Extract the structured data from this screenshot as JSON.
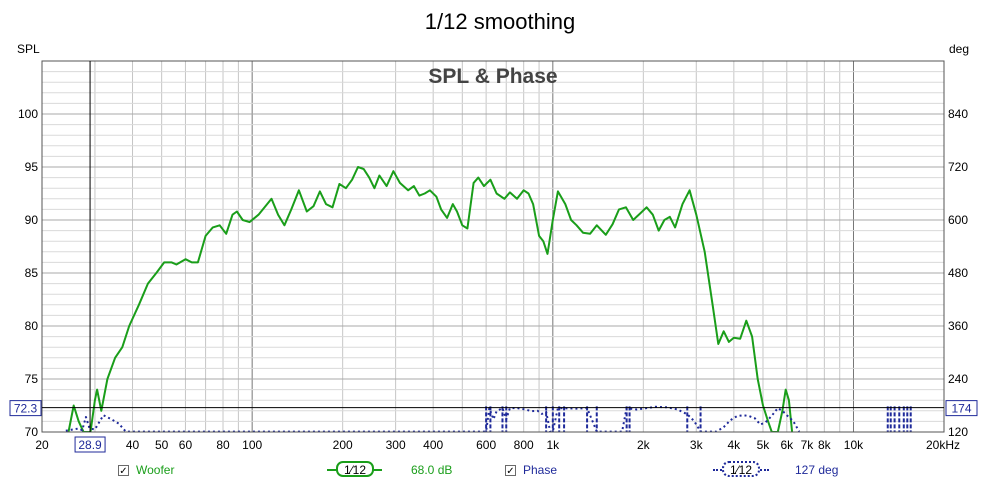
{
  "chart_data": {
    "type": "line",
    "title": "1/12 smoothing",
    "subtitle": "SPL & Phase",
    "left_axis": {
      "label": "SPL",
      "range": [
        70,
        105
      ],
      "ticks": [
        70,
        75,
        80,
        85,
        90,
        95,
        100
      ]
    },
    "right_axis": {
      "label": "deg",
      "range": [
        120,
        960
      ],
      "ticks": [
        120,
        240,
        360,
        480,
        600,
        720,
        840
      ]
    },
    "x_axis": {
      "scale": "log",
      "range": [
        20,
        20000
      ],
      "unit_label": "20kHz",
      "tick_labels": [
        {
          "v": 20,
          "t": "20"
        },
        {
          "v": 40,
          "t": "40"
        },
        {
          "v": 50,
          "t": "50"
        },
        {
          "v": 60,
          "t": "60"
        },
        {
          "v": 80,
          "t": "80"
        },
        {
          "v": 100,
          "t": "100"
        },
        {
          "v": 200,
          "t": "200"
        },
        {
          "v": 300,
          "t": "300"
        },
        {
          "v": 400,
          "t": "400"
        },
        {
          "v": 600,
          "t": "600"
        },
        {
          "v": 800,
          "t": "800"
        },
        {
          "v": 1000,
          "t": "1k"
        },
        {
          "v": 2000,
          "t": "2k"
        },
        {
          "v": 3000,
          "t": "3k"
        },
        {
          "v": 4000,
          "t": "4k"
        },
        {
          "v": 5000,
          "t": "5k"
        },
        {
          "v": 6000,
          "t": "6k"
        },
        {
          "v": 7000,
          "t": "7k"
        },
        {
          "v": 8000,
          "t": "8k"
        },
        {
          "v": 10000,
          "t": "10k"
        }
      ]
    },
    "cursor": {
      "x": 28.9,
      "x_label": "28.9",
      "y_left": 72.3,
      "y_left_label": "72.3",
      "y_right_label": "174"
    },
    "grid": true,
    "colors": {
      "spl": "#1a9e1a",
      "phase": "#1f2a9a"
    },
    "series": [
      {
        "name": "Woofer",
        "axis": "left",
        "style": "solid",
        "points": [
          [
            24.5,
            70
          ],
          [
            25.5,
            72.5
          ],
          [
            26.5,
            71
          ],
          [
            27.5,
            70
          ],
          [
            29,
            70
          ],
          [
            30,
            73
          ],
          [
            30.5,
            74
          ],
          [
            31.5,
            72
          ],
          [
            33,
            75
          ],
          [
            35,
            77
          ],
          [
            37,
            78
          ],
          [
            39,
            80
          ],
          [
            42,
            82
          ],
          [
            45,
            84
          ],
          [
            48,
            85
          ],
          [
            51,
            86
          ],
          [
            54,
            86
          ],
          [
            56,
            85.8
          ],
          [
            60,
            86.3
          ],
          [
            63,
            86
          ],
          [
            66,
            86
          ],
          [
            70,
            88.5
          ],
          [
            74,
            89.3
          ],
          [
            78,
            89.5
          ],
          [
            82,
            88.7
          ],
          [
            86,
            90.5
          ],
          [
            89,
            90.8
          ],
          [
            93,
            90
          ],
          [
            98,
            89.8
          ],
          [
            105,
            90.5
          ],
          [
            110,
            91.2
          ],
          [
            116,
            92
          ],
          [
            122,
            90.5
          ],
          [
            128,
            89.5
          ],
          [
            135,
            91
          ],
          [
            143,
            92.8
          ],
          [
            152,
            90.8
          ],
          [
            160,
            91.3
          ],
          [
            168,
            92.7
          ],
          [
            176,
            91.5
          ],
          [
            185,
            91.2
          ],
          [
            195,
            93.4
          ],
          [
            205,
            93
          ],
          [
            215,
            93.8
          ],
          [
            225,
            95
          ],
          [
            235,
            94.8
          ],
          [
            245,
            94
          ],
          [
            255,
            93
          ],
          [
            265,
            94.2
          ],
          [
            280,
            93.2
          ],
          [
            295,
            94.6
          ],
          [
            310,
            93.5
          ],
          [
            330,
            92.8
          ],
          [
            345,
            93.2
          ],
          [
            360,
            92.3
          ],
          [
            375,
            92.5
          ],
          [
            390,
            92.8
          ],
          [
            410,
            92.2
          ],
          [
            425,
            91
          ],
          [
            445,
            90.2
          ],
          [
            465,
            91.5
          ],
          [
            480,
            90.8
          ],
          [
            500,
            89.5
          ],
          [
            520,
            89.2
          ],
          [
            545,
            93.5
          ],
          [
            565,
            94
          ],
          [
            590,
            93.2
          ],
          [
            620,
            93.8
          ],
          [
            650,
            92.5
          ],
          [
            690,
            92
          ],
          [
            720,
            92.6
          ],
          [
            760,
            92
          ],
          [
            800,
            92.8
          ],
          [
            830,
            92.5
          ],
          [
            860,
            91.5
          ],
          [
            900,
            88.5
          ],
          [
            930,
            88
          ],
          [
            960,
            86.8
          ],
          [
            1000,
            90
          ],
          [
            1040,
            92.7
          ],
          [
            1100,
            91.5
          ],
          [
            1150,
            90
          ],
          [
            1200,
            89.5
          ],
          [
            1260,
            88.8
          ],
          [
            1330,
            88.7
          ],
          [
            1400,
            89.5
          ],
          [
            1500,
            88.6
          ],
          [
            1580,
            89.6
          ],
          [
            1660,
            91
          ],
          [
            1750,
            91.2
          ],
          [
            1850,
            90
          ],
          [
            1950,
            90.6
          ],
          [
            2050,
            91.2
          ],
          [
            2150,
            90.5
          ],
          [
            2250,
            89
          ],
          [
            2350,
            90
          ],
          [
            2450,
            90.3
          ],
          [
            2550,
            89.3
          ],
          [
            2700,
            91.5
          ],
          [
            2850,
            92.8
          ],
          [
            3000,
            90.5
          ],
          [
            3200,
            87
          ],
          [
            3400,
            82
          ],
          [
            3550,
            78.3
          ],
          [
            3700,
            79.5
          ],
          [
            3850,
            78.5
          ],
          [
            4000,
            78.9
          ],
          [
            4200,
            78.8
          ],
          [
            4400,
            80.5
          ],
          [
            4600,
            79
          ],
          [
            4800,
            75
          ],
          [
            5000,
            72.5
          ],
          [
            5200,
            71
          ],
          [
            5350,
            70
          ],
          [
            5600,
            70
          ],
          [
            5800,
            72
          ],
          [
            5950,
            74
          ],
          [
            6100,
            73
          ],
          [
            6250,
            70
          ]
        ]
      },
      {
        "name": "Phase",
        "axis": "right",
        "style": "dotted",
        "points": [
          [
            24,
            123
          ],
          [
            26.5,
            128
          ],
          [
            27.2,
            124
          ],
          [
            28,
            154
          ],
          [
            28.8,
            128
          ],
          [
            30,
            126
          ],
          [
            32,
            158
          ],
          [
            34,
            149
          ],
          [
            36,
            139
          ],
          [
            38,
            121
          ],
          [
            600,
            121
          ],
          [
            615,
            174
          ],
          [
            635,
            149
          ],
          [
            650,
            167
          ],
          [
            680,
            174
          ],
          [
            700,
            149
          ],
          [
            720,
            174
          ],
          [
            760,
            174
          ],
          [
            810,
            171
          ],
          [
            850,
            167
          ],
          [
            890,
            168
          ],
          [
            920,
            161
          ],
          [
            950,
            166
          ],
          [
            980,
            121
          ],
          [
            1000,
            121
          ],
          [
            1040,
            174
          ],
          [
            1200,
            173
          ],
          [
            1300,
            174
          ],
          [
            1400,
            121
          ],
          [
            1700,
            121
          ],
          [
            1760,
            174
          ],
          [
            1900,
            171
          ],
          [
            2000,
            173
          ],
          [
            2200,
            177
          ],
          [
            2400,
            176
          ],
          [
            2600,
            171
          ],
          [
            2800,
            160
          ],
          [
            2950,
            145
          ],
          [
            3100,
            121
          ],
          [
            3500,
            121
          ],
          [
            3700,
            131
          ],
          [
            3900,
            147
          ],
          [
            4100,
            156
          ],
          [
            4300,
            158
          ],
          [
            4500,
            156
          ],
          [
            4700,
            151
          ],
          [
            4900,
            137
          ],
          [
            5100,
            142
          ],
          [
            5350,
            157
          ],
          [
            5600,
            174
          ],
          [
            5800,
            168
          ],
          [
            6000,
            158
          ],
          [
            6300,
            145
          ],
          [
            6600,
            121
          ]
        ]
      }
    ],
    "phase_wrap_bars": [
      {
        "x_start": 600,
        "x_end": 620
      },
      {
        "x_start": 680,
        "x_end": 700
      },
      {
        "x_start": 950,
        "x_end": 1000
      },
      {
        "x_start": 1050,
        "x_end": 1090
      },
      {
        "x_start": 1300,
        "x_end": 1400
      },
      {
        "x_start": 1760,
        "x_end": 1800
      },
      {
        "x_start": 2800,
        "x_end": 3100
      },
      {
        "x_start": 13000,
        "x_end": 15500
      }
    ]
  },
  "legend": {
    "woofer_label": "Woofer",
    "woofer_checked": "✓",
    "woofer_smoothing": "1⁄12",
    "woofer_offset": "68.0 dB",
    "phase_label": "Phase",
    "phase_checked": "✓",
    "phase_smoothing": "1⁄12",
    "phase_offset": "127 deg"
  }
}
